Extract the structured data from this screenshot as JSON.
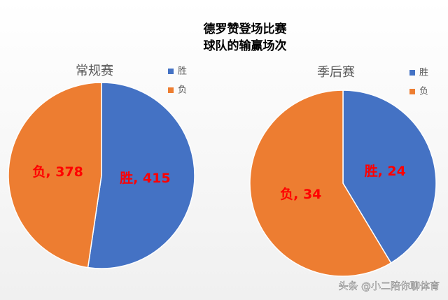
{
  "title": [
    "德罗赞登场比赛",
    "球队的输赢场次"
  ],
  "watermark": "头条 @小二陪你聊体育",
  "chart_data": [
    {
      "type": "pie",
      "subtitle": "常规赛",
      "categories": [
        "胜",
        "负"
      ],
      "values": [
        415,
        378
      ],
      "value_labels": [
        "胜, 415",
        "负, 378"
      ],
      "colors": [
        "#4472c4",
        "#ed7d31"
      ]
    },
    {
      "type": "pie",
      "subtitle": "季后赛",
      "categories": [
        "胜",
        "负"
      ],
      "values": [
        24,
        34
      ],
      "value_labels": [
        "胜, 24",
        "负, 34"
      ],
      "colors": [
        "#4472c4",
        "#ed7d31"
      ]
    }
  ]
}
